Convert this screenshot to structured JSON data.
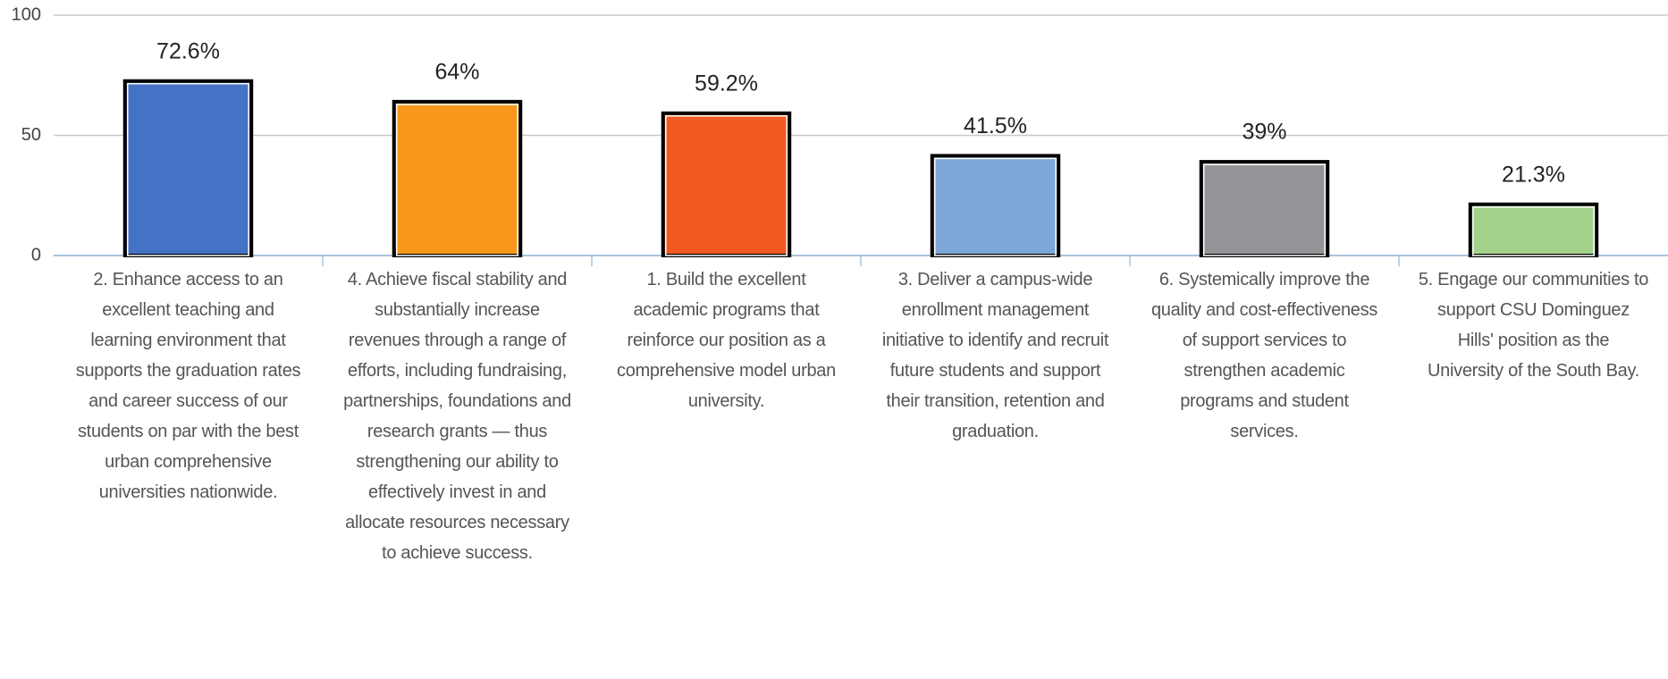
{
  "chart_data": {
    "type": "bar",
    "categories": [
      "2. Enhance access to an excellent teaching and learning environment that supports the graduation rates and career success of our students on par with the best urban comprehensive universities nationwide.",
      "4. Achieve fiscal stability and substantially increase revenues through a range of efforts, including fundraising, partnerships, foundations and research grants — thus strengthening our ability to effectively invest in and allocate resources necessary to achieve success.",
      "1. Build the excellent academic programs that reinforce our position as a comprehensive model urban university.",
      "3. Deliver a campus-wide enrollment management initiative to identify and recruit future students and support their transition, retention and graduation.",
      "6. Systemically improve the quality and cost-effectiveness of support services to strengthen academic programs and student services.",
      "5. Engage our communities to support CSU Dominguez Hills' position as the University of the South Bay."
    ],
    "values": [
      72.6,
      64,
      59.2,
      41.5,
      39,
      21.3
    ],
    "value_labels": [
      "72.6%",
      "64%",
      "59.2%",
      "41.5%",
      "39%",
      "21.3%"
    ],
    "colors": [
      "#4472c4",
      "#f7981d",
      "#f15a22",
      "#7fa6d8",
      "#939598",
      "#a4d18c"
    ],
    "ylim": [
      0,
      100
    ],
    "yticks": [
      0,
      50,
      100
    ],
    "grid": true
  }
}
